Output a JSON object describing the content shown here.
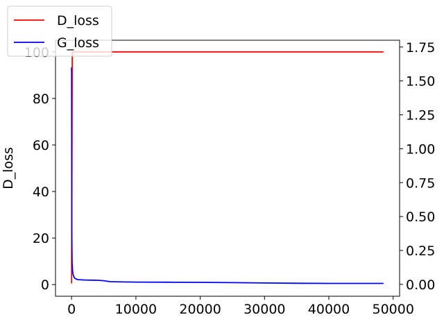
{
  "chart_data": {
    "type": "line",
    "title": "",
    "xlabel": "",
    "ylabel": "D_loss",
    "ylabel_right": "",
    "xlim": [
      -2500,
      51000
    ],
    "ylim": [
      -5,
      105
    ],
    "ylim_right": [
      -0.0875,
      1.8
    ],
    "x_ticks": [
      0,
      10000,
      20000,
      30000,
      40000,
      50000
    ],
    "y_ticks": [
      0,
      20,
      40,
      60,
      80,
      100
    ],
    "y_ticks_right": [
      0.0,
      0.25,
      0.5,
      0.75,
      1.0,
      1.25,
      1.5,
      1.75
    ],
    "x_tick_labels": [
      "0",
      "10000",
      "20000",
      "30000",
      "40000",
      "50000"
    ],
    "y_tick_labels": [
      "0",
      "20",
      "40",
      "60",
      "80",
      "100"
    ],
    "y_tick_labels_right": [
      "0.00",
      "0.25",
      "0.50",
      "0.75",
      "1.00",
      "1.25",
      "1.50",
      "1.75"
    ],
    "legend_position": "top-left",
    "grid": false,
    "series": [
      {
        "name": "D_loss",
        "color": "#ff0000",
        "axis": "left",
        "x": [
          0,
          50,
          100,
          150,
          200,
          300,
          500,
          1000,
          5000,
          10000,
          20000,
          30000,
          40000,
          48500
        ],
        "y": [
          0.5,
          40,
          100,
          100,
          100,
          100,
          100,
          100,
          100,
          100,
          100,
          100,
          100,
          100
        ]
      },
      {
        "name": "G_loss",
        "color": "#0000ff",
        "axis": "right",
        "x": [
          0,
          30,
          80,
          150,
          250,
          400,
          600,
          800,
          1000,
          1500,
          2000,
          3000,
          4000,
          5000,
          6000,
          8000,
          10000,
          15000,
          20000,
          25000,
          30000,
          35000,
          40000,
          45000,
          48500
        ],
        "y": [
          1.6,
          0.38,
          0.16,
          0.1,
          0.07,
          0.05,
          0.042,
          0.038,
          0.035,
          0.033,
          0.032,
          0.031,
          0.03,
          0.027,
          0.02,
          0.018,
          0.017,
          0.016,
          0.015,
          0.013,
          0.01,
          0.008,
          0.007,
          0.007,
          0.007
        ]
      }
    ]
  }
}
